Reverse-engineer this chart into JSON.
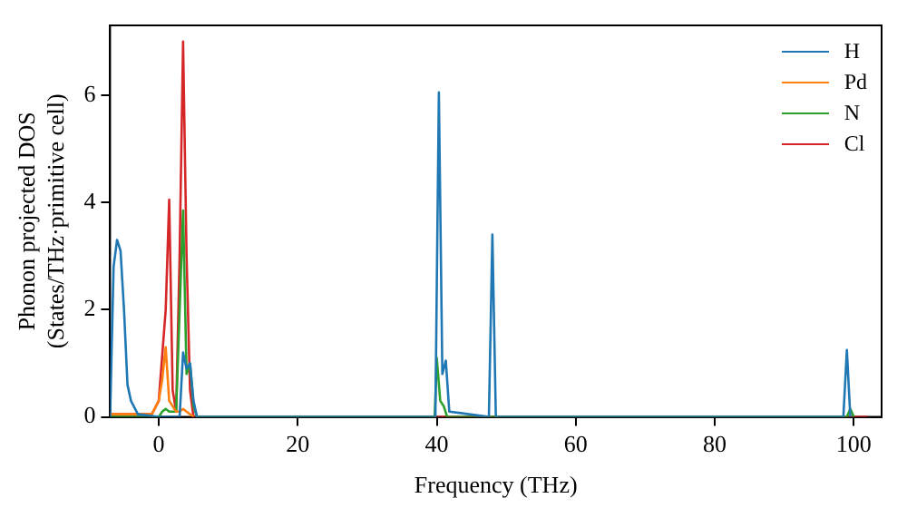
{
  "chart_data": {
    "type": "line",
    "xlabel": "Frequency (THz)",
    "ylabel": "Phonon projected DOS\n(States/THz·primitive cell)",
    "xlim": [
      -7,
      104
    ],
    "ylim": [
      0,
      7.3
    ],
    "xticks": [
      0,
      20,
      40,
      60,
      80,
      100
    ],
    "yticks": [
      0,
      2,
      4,
      6
    ],
    "legend": "top right",
    "grid": false,
    "marker": "none",
    "line_style": "solid",
    "series": [
      {
        "name": "H",
        "color": "#1f77b4",
        "x": [
          -7,
          -6.5,
          -6,
          -5.5,
          -5,
          -4.5,
          -4,
          -3,
          0,
          3,
          3.5,
          4,
          4.5,
          5,
          5.5,
          39.8,
          40.3,
          40.8,
          41.3,
          41.8,
          47.5,
          48,
          48.5,
          98.5,
          99,
          99.5
        ],
        "values": [
          0,
          2.8,
          3.3,
          3.1,
          2,
          0.6,
          0.3,
          0.05,
          0,
          0,
          1.2,
          0.9,
          1,
          0.3,
          0,
          0,
          6.05,
          0.8,
          1.05,
          0.1,
          0,
          3.4,
          0,
          0,
          1.25,
          0
        ]
      },
      {
        "name": "Pd",
        "color": "#ff7f0e",
        "x": [
          -7,
          -1,
          0,
          0.5,
          1,
          1.5,
          2.5,
          3,
          3.5,
          4,
          5
        ],
        "values": [
          0.05,
          0.05,
          0.3,
          0.7,
          1.3,
          0.3,
          0.1,
          0.1,
          0.15,
          0.1,
          0
        ]
      },
      {
        "name": "N",
        "color": "#2ca02c",
        "x": [
          -7,
          0,
          0.5,
          1,
          1.5,
          2.5,
          3.5,
          4,
          4.5,
          5,
          5.5,
          39.7,
          40,
          40.5,
          41,
          41.5,
          99,
          99.5,
          100
        ],
        "values": [
          0,
          0,
          0.1,
          0.15,
          0.1,
          0.1,
          3.85,
          0.8,
          1,
          0.2,
          0,
          0,
          1.1,
          0.3,
          0.2,
          0,
          0,
          0.15,
          0
        ]
      },
      {
        "name": "Cl",
        "color": "#d62728",
        "x": [
          -7,
          -1,
          0,
          1,
          1.5,
          2,
          2.5,
          3,
          3.5,
          4,
          4.5,
          5,
          102
        ],
        "values": [
          0.05,
          0.05,
          0.3,
          2,
          4.05,
          0.5,
          0.1,
          3,
          7,
          3,
          0.5,
          0,
          0
        ]
      }
    ]
  }
}
